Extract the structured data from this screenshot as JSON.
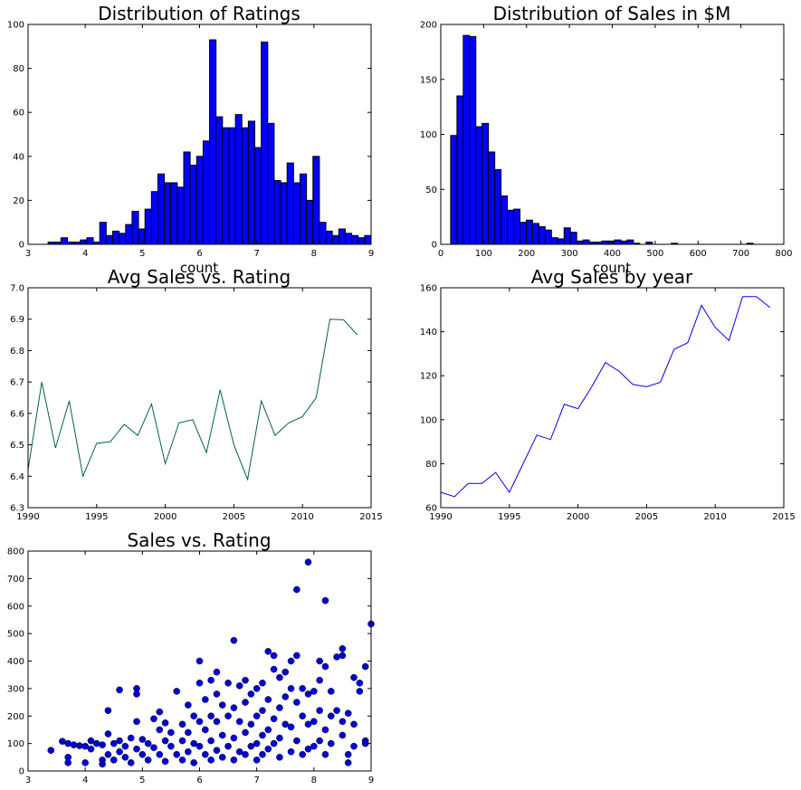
{
  "figure": {
    "background": "#ffffff"
  },
  "chart_data": [
    {
      "id": "ratings",
      "type": "bar",
      "title": "Distribution of Ratings",
      "xlabel": "count",
      "ylabel": "",
      "xlim": [
        3,
        9
      ],
      "ylim": [
        0,
        100
      ],
      "xticks": [
        3,
        4,
        5,
        6,
        7,
        8,
        9
      ],
      "yticks": [
        0,
        20,
        40,
        60,
        80,
        100
      ],
      "bar_color": "#0000ff",
      "bin_start": 3.35,
      "bin_width": 0.113,
      "values": [
        1,
        1,
        3,
        1,
        1,
        2,
        3,
        1,
        10,
        4,
        6,
        5,
        9,
        15,
        7,
        16,
        24,
        32,
        28,
        28,
        26,
        42,
        36,
        40,
        47,
        93,
        58,
        53,
        53,
        59,
        53,
        56,
        44,
        92,
        55,
        29,
        28,
        37,
        28,
        32,
        20,
        40,
        10,
        6,
        4,
        7,
        5,
        4,
        3,
        4
      ],
      "grid": false
    },
    {
      "id": "sales",
      "type": "bar",
      "title": "Distribution of Sales in $M",
      "xlabel": "count",
      "ylabel": "",
      "xlim": [
        0,
        800
      ],
      "ylim": [
        0,
        200
      ],
      "xticks": [
        0,
        100,
        200,
        300,
        400,
        500,
        600,
        700,
        800
      ],
      "yticks": [
        0,
        50,
        100,
        150,
        200
      ],
      "bar_color": "#0000ff",
      "bin_start": 23,
      "bin_width": 14.7,
      "values": [
        99,
        135,
        190,
        189,
        107,
        110,
        84,
        68,
        44,
        31,
        32,
        20,
        22,
        19,
        16,
        13,
        6,
        5,
        15,
        11,
        3,
        4,
        2,
        2,
        3,
        3,
        4,
        3,
        4,
        1,
        0,
        2,
        0,
        0,
        0,
        1,
        0,
        0,
        0,
        0,
        0,
        0,
        0,
        0,
        0,
        0,
        0,
        1,
        0,
        0
      ],
      "grid": false
    },
    {
      "id": "avg_rating_by_year",
      "type": "line",
      "title": "Avg Sales vs. Rating",
      "xlabel": "",
      "ylabel": "",
      "xlim": [
        1990,
        2015
      ],
      "ylim": [
        6.3,
        7.0
      ],
      "xticks": [
        1990,
        1995,
        2000,
        2005,
        2010,
        2015
      ],
      "yticks": [
        6.3,
        6.4,
        6.5,
        6.6,
        6.7,
        6.8,
        6.9,
        7.0
      ],
      "ytick_decimals": 1,
      "line_color": "#006634",
      "x": [
        1990,
        1991,
        1992,
        1993,
        1994,
        1995,
        1996,
        1997,
        1998,
        1999,
        2000,
        2001,
        2002,
        2003,
        2004,
        2005,
        2006,
        2007,
        2008,
        2009,
        2010,
        2011,
        2012,
        2013,
        2014
      ],
      "y": [
        6.42,
        6.7,
        6.49,
        6.64,
        6.4,
        6.505,
        6.51,
        6.565,
        6.53,
        6.63,
        6.44,
        6.57,
        6.58,
        6.475,
        6.675,
        6.5,
        6.39,
        6.64,
        6.53,
        6.57,
        6.59,
        6.65,
        6.9,
        6.898,
        6.85
      ],
      "grid": false
    },
    {
      "id": "avg_sales_by_year",
      "type": "line",
      "title": "Avg Sales by year",
      "xlabel": "",
      "ylabel": "",
      "xlim": [
        1990,
        2015
      ],
      "ylim": [
        60,
        160
      ],
      "xticks": [
        1990,
        1995,
        2000,
        2005,
        2010,
        2015
      ],
      "yticks": [
        60,
        80,
        100,
        120,
        140,
        160
      ],
      "line_color": "#0000ff",
      "x": [
        1990,
        1991,
        1992,
        1993,
        1994,
        1995,
        1996,
        1997,
        1998,
        1999,
        2000,
        2001,
        2002,
        2003,
        2004,
        2005,
        2006,
        2007,
        2008,
        2009,
        2010,
        2011,
        2012,
        2013,
        2014
      ],
      "y": [
        67,
        65,
        71,
        71,
        76,
        67,
        80,
        93,
        91,
        107,
        105,
        115,
        126,
        122,
        116,
        115,
        117,
        132,
        135,
        152,
        142,
        136,
        156,
        156,
        151
      ],
      "grid": false
    },
    {
      "id": "sales_vs_rating",
      "type": "scatter",
      "title": "Sales vs. Rating",
      "xlabel": "",
      "ylabel": "",
      "xlim": [
        3,
        9
      ],
      "ylim": [
        0,
        800
      ],
      "xticks": [
        3,
        4,
        5,
        6,
        7,
        8,
        9
      ],
      "yticks": [
        0,
        100,
        200,
        300,
        400,
        500,
        600,
        700,
        800
      ],
      "marker_color": "#0000cd",
      "points": [
        [
          3.4,
          75
        ],
        [
          3.6,
          108
        ],
        [
          3.7,
          100
        ],
        [
          3.7,
          50
        ],
        [
          3.7,
          30
        ],
        [
          3.8,
          95
        ],
        [
          3.9,
          92
        ],
        [
          4.0,
          90
        ],
        [
          4.0,
          30
        ],
        [
          4.1,
          110
        ],
        [
          4.1,
          80
        ],
        [
          4.2,
          100
        ],
        [
          4.3,
          95
        ],
        [
          4.3,
          40
        ],
        [
          4.3,
          25
        ],
        [
          4.4,
          135
        ],
        [
          4.4,
          220
        ],
        [
          4.4,
          60
        ],
        [
          4.5,
          100
        ],
        [
          4.5,
          40
        ],
        [
          4.6,
          295
        ],
        [
          4.6,
          110
        ],
        [
          4.6,
          70
        ],
        [
          4.7,
          90
        ],
        [
          4.7,
          50
        ],
        [
          4.8,
          120
        ],
        [
          4.8,
          30
        ],
        [
          4.9,
          300
        ],
        [
          4.9,
          280
        ],
        [
          4.9,
          180
        ],
        [
          4.9,
          80
        ],
        [
          5.0,
          115
        ],
        [
          5.0,
          60
        ],
        [
          5.1,
          100
        ],
        [
          5.1,
          40
        ],
        [
          5.2,
          190
        ],
        [
          5.2,
          85
        ],
        [
          5.3,
          215
        ],
        [
          5.3,
          150
        ],
        [
          5.3,
          60
        ],
        [
          5.4,
          175
        ],
        [
          5.4,
          110
        ],
        [
          5.4,
          35
        ],
        [
          5.5,
          140
        ],
        [
          5.5,
          90
        ],
        [
          5.6,
          290
        ],
        [
          5.6,
          60
        ],
        [
          5.7,
          170
        ],
        [
          5.7,
          110
        ],
        [
          5.7,
          40
        ],
        [
          5.8,
          240
        ],
        [
          5.8,
          140
        ],
        [
          5.8,
          70
        ],
        [
          5.9,
          200
        ],
        [
          5.9,
          100
        ],
        [
          5.9,
          30
        ],
        [
          6.0,
          400
        ],
        [
          6.0,
          320
        ],
        [
          6.0,
          180
        ],
        [
          6.0,
          90
        ],
        [
          6.1,
          260
        ],
        [
          6.1,
          150
        ],
        [
          6.1,
          60
        ],
        [
          6.2,
          330
        ],
        [
          6.2,
          200
        ],
        [
          6.2,
          110
        ],
        [
          6.2,
          40
        ],
        [
          6.3,
          360
        ],
        [
          6.3,
          280
        ],
        [
          6.3,
          180
        ],
        [
          6.3,
          75
        ],
        [
          6.4,
          240
        ],
        [
          6.4,
          130
        ],
        [
          6.4,
          50
        ],
        [
          6.5,
          320
        ],
        [
          6.5,
          200
        ],
        [
          6.5,
          90
        ],
        [
          6.6,
          475
        ],
        [
          6.6,
          230
        ],
        [
          6.6,
          120
        ],
        [
          6.6,
          40
        ],
        [
          6.7,
          310
        ],
        [
          6.7,
          180
        ],
        [
          6.7,
          70
        ],
        [
          6.8,
          330
        ],
        [
          6.8,
          250
        ],
        [
          6.8,
          140
        ],
        [
          6.8,
          60
        ],
        [
          6.9,
          280
        ],
        [
          6.9,
          170
        ],
        [
          6.9,
          90
        ],
        [
          7.0,
          300
        ],
        [
          7.0,
          200
        ],
        [
          7.0,
          100
        ],
        [
          7.0,
          40
        ],
        [
          7.1,
          320
        ],
        [
          7.1,
          220
        ],
        [
          7.1,
          130
        ],
        [
          7.1,
          60
        ],
        [
          7.2,
          435
        ],
        [
          7.2,
          260
        ],
        [
          7.2,
          150
        ],
        [
          7.2,
          80
        ],
        [
          7.3,
          420
        ],
        [
          7.3,
          370
        ],
        [
          7.3,
          190
        ],
        [
          7.3,
          100
        ],
        [
          7.4,
          340
        ],
        [
          7.4,
          230
        ],
        [
          7.4,
          120
        ],
        [
          7.4,
          50
        ],
        [
          7.5,
          360
        ],
        [
          7.5,
          270
        ],
        [
          7.5,
          170
        ],
        [
          7.6,
          400
        ],
        [
          7.6,
          300
        ],
        [
          7.6,
          160
        ],
        [
          7.6,
          70
        ],
        [
          7.7,
          660
        ],
        [
          7.7,
          420
        ],
        [
          7.7,
          250
        ],
        [
          7.7,
          110
        ],
        [
          7.8,
          300
        ],
        [
          7.8,
          200
        ],
        [
          7.8,
          60
        ],
        [
          7.9,
          760
        ],
        [
          7.9,
          280
        ],
        [
          7.9,
          170
        ],
        [
          7.9,
          80
        ],
        [
          8.0,
          290
        ],
        [
          8.0,
          180
        ],
        [
          8.0,
          90
        ],
        [
          8.1,
          400
        ],
        [
          8.1,
          330
        ],
        [
          8.1,
          220
        ],
        [
          8.1,
          110
        ],
        [
          8.2,
          620
        ],
        [
          8.2,
          380
        ],
        [
          8.2,
          150
        ],
        [
          8.2,
          60
        ],
        [
          8.3,
          290
        ],
        [
          8.3,
          200
        ],
        [
          8.3,
          100
        ],
        [
          8.4,
          415
        ],
        [
          8.4,
          220
        ],
        [
          8.5,
          445
        ],
        [
          8.5,
          420
        ],
        [
          8.5,
          180
        ],
        [
          8.5,
          130
        ],
        [
          8.6,
          210
        ],
        [
          8.6,
          60
        ],
        [
          8.6,
          30
        ],
        [
          8.7,
          340
        ],
        [
          8.7,
          170
        ],
        [
          8.7,
          90
        ],
        [
          8.8,
          320
        ],
        [
          8.8,
          290
        ],
        [
          8.9,
          380
        ],
        [
          8.9,
          110
        ],
        [
          8.9,
          100
        ],
        [
          9.0,
          535
        ]
      ],
      "grid": false
    }
  ]
}
